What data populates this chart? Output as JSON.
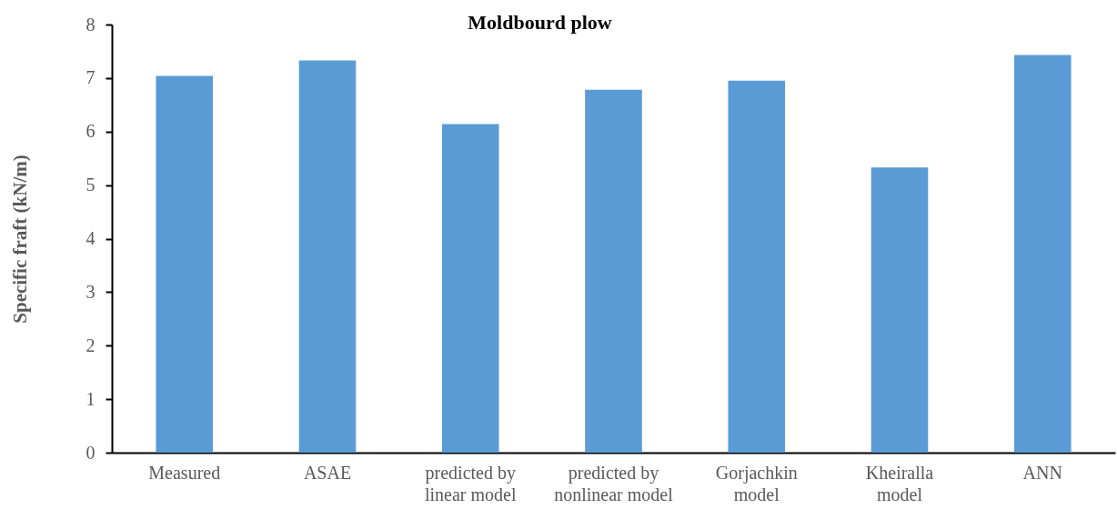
{
  "chart_data": {
    "type": "bar",
    "title": "Moldbourd plow",
    "ylabel": "Specific fraft (kN/m)",
    "categories": [
      "Measured",
      "ASAE",
      "predicted by\nlinear model",
      "predicted by\nnonlinear model",
      "Gorjachkin\nmodel",
      "Kheiralla\nmodel",
      "ANN"
    ],
    "values": [
      7.04,
      7.33,
      6.14,
      6.78,
      6.95,
      5.33,
      7.43
    ],
    "color": "#5b9bd5",
    "ylim": [
      0,
      8
    ],
    "yticks": [
      0,
      1,
      2,
      3,
      4,
      5,
      6,
      7,
      8
    ],
    "grid": false
  }
}
